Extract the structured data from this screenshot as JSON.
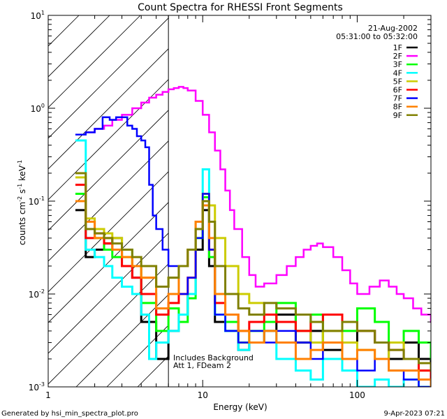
{
  "chart_data": {
    "type": "line",
    "title": "Count Spectra for RHESSI Front Segments",
    "xlabel": "Energy (keV)",
    "ylabel_parts": [
      "counts cm",
      "-2",
      " s",
      "-1",
      " keV",
      "-1"
    ],
    "xscale": "log",
    "yscale": "log",
    "xlim": [
      1,
      300
    ],
    "ylim": [
      0.001,
      10
    ],
    "x_tick_labels": [
      "1",
      "10",
      "100"
    ],
    "y_tick_labels": [
      {
        "base": "10",
        "exp": "-3"
      },
      {
        "base": "10",
        "exp": "-2"
      },
      {
        "base": "10",
        "exp": "-1"
      },
      {
        "base": "10",
        "exp": "0"
      },
      {
        "base": "10",
        "exp": "1"
      }
    ],
    "attenuated_energy_keV": 6,
    "date": "21-Aug-2002",
    "time_range": "05:31:00 to 05:32:00",
    "annotations": [
      "Includes Background",
      "Att 1, FDeam 2"
    ],
    "footer_left": "Generated by hsi_min_spectra_plot.pro",
    "footer_right": "9-Apr-2023 07:21",
    "legend_position": "top-right",
    "series": [
      {
        "name": "1F",
        "color": "#000000",
        "x": [
          1.5,
          1.75,
          2.0,
          2.3,
          2.6,
          3.0,
          3.5,
          4.0,
          5.0,
          6.0,
          7.0,
          8.0,
          9.0,
          10.0,
          11.0,
          12.0,
          14.0,
          17.0,
          20.0,
          25.0,
          30.0,
          40.0,
          50.0,
          60.0,
          80.0,
          100.0,
          130.0,
          160.0,
          200.0,
          250.0,
          300.0
        ],
        "y": [
          0.08,
          0.025,
          0.03,
          0.035,
          0.04,
          0.02,
          0.015,
          0.005,
          0.002,
          0.004,
          0.006,
          0.01,
          0.03,
          0.08,
          0.02,
          0.005,
          0.004,
          0.0025,
          0.003,
          0.004,
          0.006,
          0.003,
          0.004,
          0.0025,
          0.003,
          0.004,
          0.003,
          0.002,
          0.003,
          0.002,
          0.0015
        ]
      },
      {
        "name": "2F",
        "color": "#ff00ff",
        "x": [
          1.5,
          1.75,
          2.0,
          2.3,
          2.6,
          3.0,
          3.5,
          4.0,
          4.5,
          5.0,
          5.5,
          6.0,
          6.5,
          7.0,
          7.5,
          8.0,
          9.0,
          10.0,
          11.0,
          12.0,
          13.0,
          14.0,
          15.0,
          16.0,
          18.0,
          20.0,
          22.0,
          25.0,
          30.0,
          35.0,
          40.0,
          45.0,
          50.0,
          55.0,
          60.0,
          70.0,
          80.0,
          90.0,
          100.0,
          120.0,
          140.0,
          160.0,
          180.0,
          200.0,
          230.0,
          260.0,
          300.0
        ],
        "y": [
          0.52,
          0.55,
          0.6,
          0.65,
          0.75,
          0.85,
          1.0,
          1.15,
          1.3,
          1.4,
          1.5,
          1.6,
          1.65,
          1.7,
          1.65,
          1.55,
          1.2,
          0.85,
          0.55,
          0.35,
          0.22,
          0.13,
          0.08,
          0.05,
          0.025,
          0.016,
          0.012,
          0.013,
          0.016,
          0.02,
          0.025,
          0.03,
          0.033,
          0.035,
          0.032,
          0.025,
          0.018,
          0.013,
          0.01,
          0.012,
          0.014,
          0.012,
          0.01,
          0.009,
          0.007,
          0.006,
          0.005
        ]
      },
      {
        "name": "3F",
        "color": "#00ff00",
        "x": [
          1.5,
          1.75,
          2.0,
          2.3,
          2.6,
          3.0,
          3.5,
          4.0,
          5.0,
          6.0,
          7.0,
          8.0,
          9.0,
          10.0,
          11.0,
          12.0,
          14.0,
          17.0,
          20.0,
          25.0,
          30.0,
          40.0,
          50.0,
          60.0,
          80.0,
          100.0,
          130.0,
          160.0,
          200.0,
          250.0,
          300.0
        ],
        "y": [
          0.12,
          0.05,
          0.04,
          0.03,
          0.025,
          0.03,
          0.02,
          0.008,
          0.004,
          0.007,
          0.005,
          0.009,
          0.04,
          0.11,
          0.025,
          0.006,
          0.005,
          0.003,
          0.004,
          0.005,
          0.008,
          0.004,
          0.006,
          0.003,
          0.004,
          0.007,
          0.005,
          0.003,
          0.004,
          0.003,
          0.002
        ]
      },
      {
        "name": "4F",
        "color": "#00ffff",
        "x": [
          1.5,
          1.75,
          2.0,
          2.3,
          2.6,
          3.0,
          3.5,
          4.0,
          4.5,
          5.0,
          6.0,
          7.0,
          8.0,
          9.0,
          10.0,
          11.0,
          12.0,
          14.0,
          17.0,
          20.0,
          25.0,
          30.0,
          40.0,
          50.0,
          60.0,
          80.0,
          100.0,
          130.0,
          160.0,
          200.0,
          250.0,
          300.0
        ],
        "y": [
          0.45,
          0.03,
          0.025,
          0.02,
          0.015,
          0.012,
          0.01,
          0.006,
          0.002,
          0.003,
          0.004,
          0.006,
          0.01,
          0.05,
          0.22,
          0.03,
          0.006,
          0.004,
          0.0025,
          0.003,
          0.004,
          0.002,
          0.0015,
          0.0012,
          0.002,
          0.0015,
          0.001,
          0.0012,
          0.001,
          0.0012,
          0.001,
          0.001
        ]
      },
      {
        "name": "5F",
        "color": "#cccc00",
        "x": [
          1.5,
          1.75,
          2.0,
          2.3,
          2.6,
          3.0,
          3.5,
          4.0,
          5.0,
          6.0,
          7.0,
          8.0,
          9.0,
          10.0,
          11.0,
          12.0,
          14.0,
          17.0,
          20.0,
          25.0,
          30.0,
          40.0,
          50.0,
          60.0,
          80.0,
          100.0,
          130.0,
          160.0,
          200.0,
          250.0,
          300.0
        ],
        "y": [
          0.18,
          0.065,
          0.05,
          0.045,
          0.04,
          0.025,
          0.02,
          0.015,
          0.012,
          0.015,
          0.02,
          0.03,
          0.06,
          0.12,
          0.09,
          0.04,
          0.02,
          0.01,
          0.008,
          0.006,
          0.005,
          0.004,
          0.003,
          0.004,
          0.003,
          0.0025,
          0.002,
          0.003,
          0.002,
          0.0015,
          0.0015
        ]
      },
      {
        "name": "6F",
        "color": "#ff0000",
        "x": [
          1.5,
          1.75,
          2.0,
          2.3,
          2.6,
          3.0,
          3.5,
          4.0,
          5.0,
          6.0,
          7.0,
          8.0,
          9.0,
          10.0,
          11.0,
          12.0,
          14.0,
          17.0,
          20.0,
          25.0,
          30.0,
          40.0,
          50.0,
          60.0,
          80.0,
          100.0,
          130.0,
          160.0,
          200.0,
          250.0,
          300.0
        ],
        "y": [
          0.15,
          0.04,
          0.045,
          0.035,
          0.03,
          0.02,
          0.015,
          0.01,
          0.006,
          0.008,
          0.01,
          0.015,
          0.05,
          0.1,
          0.03,
          0.008,
          0.006,
          0.004,
          0.005,
          0.006,
          0.005,
          0.004,
          0.005,
          0.006,
          0.005,
          0.004,
          0.003,
          0.0025,
          0.002,
          0.0015,
          0.0012
        ]
      },
      {
        "name": "7F",
        "color": "#0000ff",
        "x": [
          1.5,
          1.75,
          2.0,
          2.25,
          2.5,
          2.75,
          3.0,
          3.25,
          3.5,
          3.75,
          4.0,
          4.25,
          4.5,
          4.75,
          5.0,
          5.5,
          6.0,
          7.0,
          8.0,
          9.0,
          10.0,
          11.0,
          12.0,
          14.0,
          17.0,
          20.0,
          25.0,
          30.0,
          40.0,
          50.0,
          60.0,
          80.0,
          100.0,
          130.0,
          160.0,
          200.0,
          250.0,
          300.0
        ],
        "y": [
          0.52,
          0.55,
          0.6,
          0.8,
          0.75,
          0.8,
          0.8,
          0.65,
          0.6,
          0.5,
          0.45,
          0.38,
          0.15,
          0.07,
          0.05,
          0.03,
          0.02,
          0.01,
          0.015,
          0.04,
          0.12,
          0.03,
          0.006,
          0.004,
          0.003,
          0.004,
          0.003,
          0.004,
          0.003,
          0.002,
          0.003,
          0.002,
          0.0015,
          0.002,
          0.0015,
          0.0012,
          0.001,
          0.001
        ]
      },
      {
        "name": "8F",
        "color": "#ff8000",
        "x": [
          1.5,
          1.75,
          2.0,
          2.3,
          2.6,
          3.0,
          3.5,
          4.0,
          5.0,
          6.0,
          7.0,
          8.0,
          9.0,
          10.0,
          11.0,
          12.0,
          14.0,
          17.0,
          20.0,
          25.0,
          30.0,
          40.0,
          50.0,
          60.0,
          80.0,
          100.0,
          130.0,
          160.0,
          200.0,
          250.0,
          300.0
        ],
        "y": [
          0.1,
          0.06,
          0.04,
          0.04,
          0.03,
          0.025,
          0.02,
          0.015,
          0.007,
          0.01,
          0.02,
          0.03,
          0.06,
          0.09,
          0.04,
          0.01,
          0.006,
          0.004,
          0.003,
          0.004,
          0.003,
          0.002,
          0.0025,
          0.003,
          0.002,
          0.0025,
          0.002,
          0.0015,
          0.0015,
          0.0012,
          0.001
        ]
      },
      {
        "name": "9F",
        "color": "#808000",
        "x": [
          1.5,
          1.75,
          2.0,
          2.3,
          2.6,
          3.0,
          3.5,
          4.0,
          5.0,
          6.0,
          7.0,
          8.0,
          9.0,
          10.0,
          11.0,
          12.0,
          14.0,
          17.0,
          20.0,
          25.0,
          30.0,
          40.0,
          50.0,
          60.0,
          80.0,
          100.0,
          130.0,
          160.0,
          200.0,
          250.0,
          300.0
        ],
        "y": [
          0.2,
          0.05,
          0.045,
          0.04,
          0.035,
          0.03,
          0.025,
          0.02,
          0.012,
          0.015,
          0.02,
          0.03,
          0.05,
          0.1,
          0.06,
          0.02,
          0.01,
          0.007,
          0.006,
          0.008,
          0.007,
          0.006,
          0.005,
          0.004,
          0.005,
          0.004,
          0.003,
          0.0025,
          0.002,
          0.0018,
          0.0015
        ]
      }
    ]
  }
}
